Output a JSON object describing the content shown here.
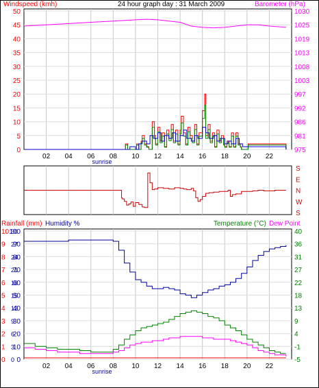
{
  "header": {
    "left_title": "Windspeed (kmh)",
    "center_title": "24 hour graph day : 31 March 2009",
    "right_title": "Barometer (hPa)"
  },
  "bottom_header": {
    "rain": "Rainfall (mm)",
    "humidity": "Humidity %",
    "temperature": "Temperature (°C)",
    "dewpoint": "Dew Point"
  },
  "colors": {
    "wind": "#ff0000",
    "wind_gust": "#008000",
    "wind_avg": "#0000cc",
    "pressure": "#ff00ff",
    "direction": "#cc0000",
    "humidity": "#0000a0",
    "temperature": "#008000",
    "dewpoint": "#ff00ff",
    "rain": "#ff0000"
  },
  "chart_data": [
    {
      "type": "line",
      "title": "24 hour graph day : 31 March 2009",
      "x_ticks": [
        "02",
        "04",
        "06",
        "08",
        "10",
        "12",
        "14",
        "16",
        "18",
        "20",
        "22"
      ],
      "x_annotation": "sunrise",
      "left_axis": {
        "label": "Windspeed (kmh)",
        "ticks": [
          "0",
          "5",
          "10",
          "15",
          "20",
          "25",
          "30",
          "35",
          "40",
          "45",
          "50"
        ],
        "range": [
          0,
          50
        ]
      },
      "right_axis": {
        "label": "Barometer (hPa)",
        "ticks": [
          "975",
          "981",
          "986",
          "992",
          "997",
          "1003",
          "1008",
          "1013",
          "1019",
          "1025",
          "1030"
        ],
        "range": [
          975,
          1030
        ]
      },
      "series": [
        {
          "name": "Barometer",
          "axis": "right",
          "x": [
            0,
            2,
            4,
            6,
            8,
            10,
            11,
            12,
            13,
            14,
            15,
            16,
            17,
            18,
            19,
            20,
            21,
            22,
            23.5
          ],
          "y": [
            1024,
            1024.5,
            1025,
            1025.5,
            1026,
            1026.5,
            1026.7,
            1026.5,
            1026,
            1025.5,
            1024,
            1023.5,
            1023.3,
            1023.5,
            1024,
            1024.5,
            1024.5,
            1024,
            1023.5
          ]
        },
        {
          "name": "Wind gust",
          "axis": "left",
          "x": [
            0,
            9.0,
            9.1,
            9.3,
            9.4,
            10.0,
            10.1,
            10.3,
            10.5,
            10.6,
            10.8,
            11.0,
            11.2,
            11.5,
            11.7,
            11.8,
            12.0,
            12.2,
            12.4,
            12.6,
            12.8,
            13.0,
            13.2,
            13.4,
            13.6,
            13.8,
            14.0,
            14.1,
            14.3,
            14.5,
            14.7,
            14.9,
            15.1,
            15.3,
            15.5,
            15.7,
            16.0,
            16.2,
            16.3,
            16.5,
            16.7,
            16.9,
            17.1,
            17.3,
            17.5,
            17.7,
            17.9,
            18.0,
            18.2,
            18.4,
            18.6,
            18.8,
            19.0,
            19.2,
            19.4,
            19.5,
            20.0,
            20.1,
            23.5
          ],
          "y": [
            0,
            0,
            2,
            0,
            0,
            0,
            2,
            0,
            3,
            5,
            2,
            1,
            0,
            10,
            5,
            2,
            8,
            3,
            6,
            1,
            7,
            4,
            9,
            3,
            7,
            2,
            7,
            12,
            6,
            2,
            8,
            5,
            3,
            9,
            2,
            6,
            14,
            20,
            5,
            9,
            3,
            6,
            1,
            7,
            3,
            5,
            2,
            1,
            3,
            1,
            6,
            1,
            6,
            2,
            1,
            0,
            0,
            2,
            0
          ]
        },
        {
          "name": "Wind average",
          "axis": "left",
          "x": [
            0,
            9.3,
            9.5,
            10.0,
            10.3,
            10.6,
            11.0,
            11.3,
            11.6,
            12.0,
            12.3,
            12.6,
            13.0,
            13.3,
            13.6,
            14.0,
            14.3,
            14.6,
            15.0,
            15.3,
            15.6,
            16.0,
            16.3,
            16.6,
            17.0,
            17.3,
            17.6,
            18.0,
            18.3,
            18.6,
            19.0,
            19.3,
            19.6,
            20.0,
            23.5
          ],
          "y": [
            0,
            0,
            1,
            0,
            2,
            3,
            2,
            5,
            4,
            6,
            3,
            5,
            4,
            6,
            3,
            5,
            7,
            4,
            3,
            5,
            4,
            8,
            6,
            4,
            5,
            3,
            4,
            2,
            3,
            2,
            4,
            2,
            1,
            1,
            0
          ]
        }
      ]
    },
    {
      "type": "line",
      "title": "",
      "x_ticks": [
        "02",
        "04",
        "06",
        "08",
        "10",
        "12",
        "14",
        "16",
        "18",
        "20",
        "22"
      ],
      "right_axis": {
        "label": "",
        "ticks": [
          "S",
          "E",
          "N",
          "W",
          "S"
        ],
        "range": [
          0,
          360
        ]
      },
      "series": [
        {
          "name": "Wind direction",
          "x": [
            0,
            8.7,
            8.75,
            8.8,
            9.0,
            9.2,
            9.4,
            9.6,
            9.8,
            10.0,
            10.3,
            10.6,
            10.8,
            11.0,
            11.1,
            11.3,
            11.5,
            11.7,
            12.0,
            12.5,
            13.0,
            13.5,
            14.0,
            14.3,
            14.6,
            15.0,
            15.2,
            15.4,
            15.6,
            15.8,
            16.0,
            16.3,
            16.6,
            17.0,
            17.5,
            18.0,
            18.3,
            18.5,
            18.7,
            19.0,
            19.5,
            20.0,
            20.5,
            21.0,
            21.5,
            22.0,
            22.5,
            23.5
          ],
          "y": [
            180,
            180,
            240,
            250,
            270,
            300,
            290,
            275,
            310,
            280,
            295,
            315,
            320,
            320,
            40,
            120,
            175,
            170,
            160,
            165,
            170,
            160,
            165,
            170,
            175,
            165,
            185,
            240,
            270,
            255,
            230,
            205,
            200,
            195,
            190,
            190,
            180,
            230,
            215,
            210,
            190,
            190,
            185,
            180,
            185,
            185,
            180,
            180
          ]
        }
      ]
    },
    {
      "type": "line",
      "title": "",
      "x_ticks": [
        "02",
        "04",
        "06",
        "08",
        "10",
        "12",
        "14",
        "16",
        "18",
        "20",
        "22"
      ],
      "x_annotation": "sunrise",
      "left_axis_rain": {
        "label": "Rainfall (mm)",
        "ticks": [
          "0",
          "1",
          "2",
          "3",
          "4",
          "5",
          "6",
          "7",
          "8",
          "9",
          "10"
        ],
        "range": [
          0,
          10
        ]
      },
      "left_axis_humidity": {
        "label": "Humidity %",
        "ticks": [
          "0",
          "3",
          "6",
          "9",
          "12",
          "15",
          "18",
          "21",
          "24",
          "27",
          "30"
        ],
        "range": [
          0,
          30
        ],
        "ticks2": [
          "0",
          "10",
          "20",
          "30",
          "40",
          "50",
          "60",
          "70",
          "80",
          "90",
          "100"
        ]
      },
      "right_axis": {
        "label": "Temperature (°C)",
        "ticks": [
          "-5",
          "-1",
          "4",
          "9",
          "13",
          "18",
          "22",
          "27",
          "31",
          "36",
          "40"
        ],
        "range": [
          -5,
          40
        ]
      },
      "series": [
        {
          "name": "Humidity %",
          "axis": "humidity",
          "x": [
            0,
            1,
            2,
            3,
            4,
            5,
            6,
            7,
            8,
            8.5,
            9,
            9.5,
            10,
            10.5,
            11,
            11.5,
            12,
            12.5,
            13,
            13.5,
            14,
            14.5,
            15,
            15.5,
            16,
            16.5,
            17,
            17.5,
            18,
            18.5,
            19,
            19.5,
            20,
            20.5,
            21,
            21.5,
            22,
            22.5,
            23,
            23.5
          ],
          "y": [
            92,
            92,
            92,
            92,
            93,
            93,
            93,
            93,
            92,
            85,
            75,
            68,
            62,
            60,
            57,
            55,
            55,
            56,
            55,
            54,
            51,
            50,
            48,
            50,
            52,
            54,
            55,
            57,
            58,
            60,
            63,
            67,
            72,
            77,
            81,
            84,
            86,
            87,
            88,
            89
          ]
        },
        {
          "name": "Temperature",
          "axis": "right",
          "x": [
            0,
            1,
            2,
            3,
            4,
            5,
            6,
            7,
            8,
            8.5,
            9,
            9.5,
            10,
            10.5,
            11,
            11.5,
            12,
            12.5,
            13,
            13.5,
            14,
            14.5,
            15,
            15.5,
            16,
            16.5,
            17,
            17.5,
            18,
            18.5,
            19,
            19.5,
            20,
            20.5,
            21,
            21.5,
            22,
            22.5,
            23,
            23.5
          ],
          "y": [
            0.5,
            -0.5,
            -1,
            -1.5,
            -1.5,
            -2,
            -2.5,
            -2.5,
            -1.5,
            0,
            2,
            3.5,
            5,
            6,
            6.5,
            7,
            7.5,
            8,
            9,
            10,
            11,
            11.5,
            12,
            11.5,
            11,
            10,
            9.5,
            8.5,
            7,
            6,
            5,
            3.5,
            2,
            1,
            0,
            -1,
            -2,
            -2.5,
            -3,
            -3
          ]
        },
        {
          "name": "Dew Point",
          "axis": "right",
          "x": [
            0,
            1,
            2,
            3,
            4,
            5,
            6,
            7,
            8,
            8.5,
            9,
            9.5,
            10,
            10.5,
            11,
            11.5,
            12,
            12.5,
            13,
            13.5,
            14,
            14.5,
            15,
            15.5,
            16,
            16.5,
            17,
            17.5,
            18,
            18.5,
            19,
            19.5,
            20,
            20.5,
            21,
            21.5,
            22,
            22.5,
            23,
            23.5
          ],
          "y": [
            -1,
            -1.5,
            -2,
            -2.5,
            -2.5,
            -3,
            -3,
            -3,
            -2.5,
            -2,
            -1,
            0,
            0.5,
            1,
            1,
            1.5,
            1.5,
            2,
            2.5,
            2.5,
            3,
            3,
            3,
            3,
            2.5,
            2.5,
            2,
            2,
            2,
            1.5,
            1,
            0.5,
            0,
            -1,
            -2,
            -2.5,
            -3,
            -3.5,
            -3.5,
            -4
          ]
        },
        {
          "name": "Rainfall",
          "axis": "rain",
          "x": [
            0,
            23.5
          ],
          "y": [
            0,
            0
          ]
        }
      ]
    }
  ]
}
